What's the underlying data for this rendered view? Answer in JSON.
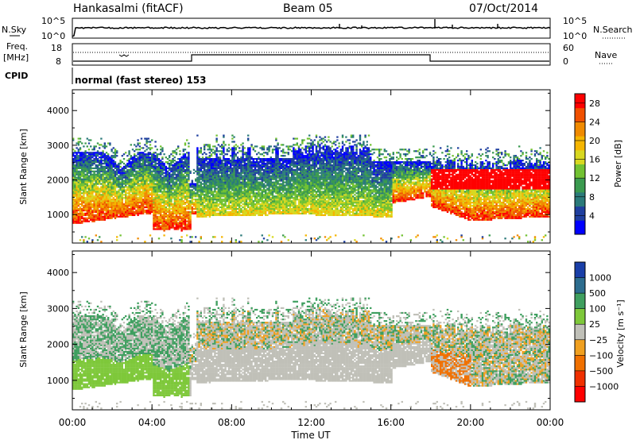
{
  "header": {
    "station": "Hankasalmi (fitACF)",
    "beam": "Beam 05",
    "date": "07/Oct/2014"
  },
  "noise_panel": {
    "left_label": "N.Sky",
    "right_label": "N.Search",
    "left_ticks": [
      "10^5",
      "10^0"
    ],
    "right_ticks": [
      "10^5",
      "10^0"
    ]
  },
  "freq_panel": {
    "left_label_line1": "Freq.",
    "left_label_line2": "[MHz]",
    "right_label": "Nave",
    "left_ticks": [
      "18",
      "8"
    ],
    "right_ticks": [
      "60",
      "0"
    ]
  },
  "cpid": {
    "label": "CPID",
    "mode": "normal (fast stereo) 153"
  },
  "x_axis": {
    "title": "Time UT",
    "ticks": [
      "00:00",
      "04:00",
      "08:00",
      "12:00",
      "16:00",
      "20:00",
      "00:00"
    ]
  },
  "colors": {
    "power_scale": [
      "#0000ff",
      "#1f3f9f",
      "#2b7a7a",
      "#3a9a4f",
      "#72c232",
      "#d8d820",
      "#f5b500",
      "#f08a00",
      "#f05000",
      "#ff0000"
    ],
    "velocity_scale": [
      "#1a3fa8",
      "#2d6d8f",
      "#3f9f5f",
      "#7ec83a",
      "#c0c0b8",
      "#f0a020",
      "#f07000",
      "#f03000",
      "#ff0000"
    ],
    "ground_scatter": "#bebeb6"
  },
  "chart_data": [
    {
      "type": "heatmap",
      "title": "Power",
      "x": [
        "00:00",
        "04:00",
        "08:00",
        "12:00",
        "16:00",
        "20:00",
        "00:00"
      ],
      "ylabel": "Slant Range [km]",
      "yticks": [
        "1000",
        "2000",
        "3000",
        "4000"
      ],
      "ylim": [
        180,
        4600
      ],
      "colorbar": {
        "label": "Power [dB]",
        "ticks": [
          "4",
          "8",
          "12",
          "16",
          "20",
          "24",
          "28"
        ],
        "range": [
          0,
          30
        ]
      }
    },
    {
      "type": "heatmap",
      "title": "Velocity",
      "x": [
        "00:00",
        "04:00",
        "08:00",
        "12:00",
        "16:00",
        "20:00",
        "00:00"
      ],
      "ylabel": "Slant Range [km]",
      "yticks": [
        "1000",
        "2000",
        "3000",
        "4000"
      ],
      "ylim": [
        180,
        4600
      ],
      "colorbar": {
        "label": "Velocity [m s⁻¹]",
        "ticks": [
          "1000",
          "500",
          "100",
          "25",
          "−25",
          "−100",
          "−500",
          "−1000"
        ]
      }
    }
  ]
}
